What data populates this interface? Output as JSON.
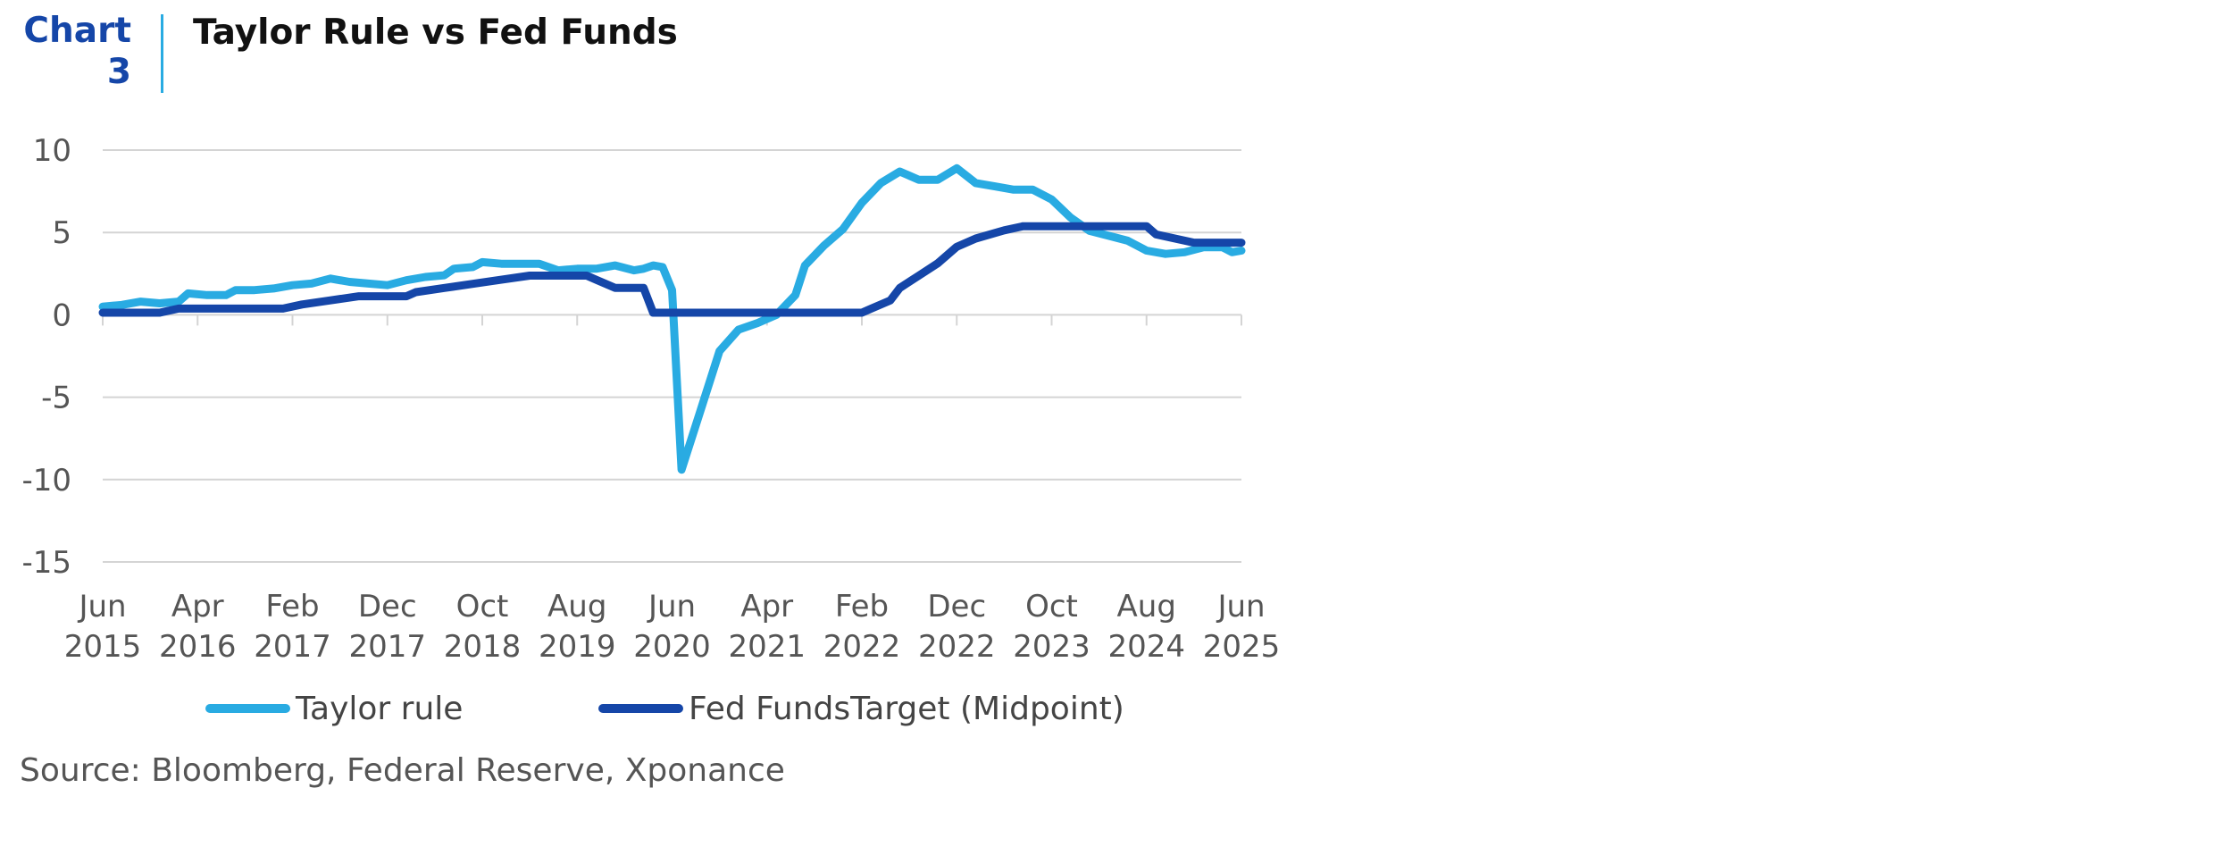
{
  "header": {
    "chart_label": "Chart 3",
    "title": "Taylor Rule vs Fed Funds"
  },
  "source": "Source: Bloomberg, Federal Reserve, Xponance",
  "colors": {
    "taylor": "#29abe2",
    "fed_funds": "#1546a8",
    "grid": "#d4d4d4",
    "axis_text": "#555555"
  },
  "chart_data": {
    "type": "line",
    "title": "Taylor Rule vs Fed Funds",
    "xlabel": "",
    "ylabel": "",
    "ylim": [
      -15,
      10
    ],
    "y_ticks": [
      10,
      5,
      0,
      -5,
      -10,
      -15
    ],
    "x_range": [
      "2015-06",
      "2025-06"
    ],
    "x_ticks": [
      {
        "date": "2015-06",
        "line1": "Jun",
        "line2": "2015"
      },
      {
        "date": "2016-04",
        "line1": "Apr",
        "line2": "2016"
      },
      {
        "date": "2017-02",
        "line1": "Feb",
        "line2": "2017"
      },
      {
        "date": "2017-12",
        "line1": "Dec",
        "line2": "2017"
      },
      {
        "date": "2018-10",
        "line1": "Oct",
        "line2": "2018"
      },
      {
        "date": "2019-08",
        "line1": "Aug",
        "line2": "2019"
      },
      {
        "date": "2020-06",
        "line1": "Jun",
        "line2": "2020"
      },
      {
        "date": "2021-04",
        "line1": "Apr",
        "line2": "2021"
      },
      {
        "date": "2022-02",
        "line1": "Feb",
        "line2": "2022"
      },
      {
        "date": "2022-12",
        "line1": "Dec",
        "line2": "2022"
      },
      {
        "date": "2023-10",
        "line1": "Oct",
        "line2": "2023"
      },
      {
        "date": "2024-08",
        "line1": "Aug",
        "line2": "2024"
      },
      {
        "date": "2025-06",
        "line1": "Jun",
        "line2": "2025"
      }
    ],
    "grid": true,
    "legend_position": "bottom",
    "series": [
      {
        "name": "Taylor rule",
        "color": "#29abe2",
        "points": [
          [
            "2015-06",
            0.5
          ],
          [
            "2015-08",
            0.6
          ],
          [
            "2015-10",
            0.8
          ],
          [
            "2015-12",
            0.7
          ],
          [
            "2016-02",
            0.8
          ],
          [
            "2016-03",
            1.3
          ],
          [
            "2016-05",
            1.2
          ],
          [
            "2016-07",
            1.2
          ],
          [
            "2016-08",
            1.5
          ],
          [
            "2016-10",
            1.5
          ],
          [
            "2016-12",
            1.6
          ],
          [
            "2017-02",
            1.8
          ],
          [
            "2017-04",
            1.9
          ],
          [
            "2017-06",
            2.2
          ],
          [
            "2017-08",
            2.0
          ],
          [
            "2017-10",
            1.9
          ],
          [
            "2017-12",
            1.8
          ],
          [
            "2018-02",
            2.1
          ],
          [
            "2018-04",
            2.3
          ],
          [
            "2018-06",
            2.4
          ],
          [
            "2018-07",
            2.8
          ],
          [
            "2018-09",
            2.9
          ],
          [
            "2018-10",
            3.2
          ],
          [
            "2018-12",
            3.1
          ],
          [
            "2019-02",
            3.1
          ],
          [
            "2019-04",
            3.1
          ],
          [
            "2019-06",
            2.7
          ],
          [
            "2019-08",
            2.8
          ],
          [
            "2019-10",
            2.8
          ],
          [
            "2019-12",
            3.0
          ],
          [
            "2020-02",
            2.7
          ],
          [
            "2020-03",
            2.8
          ],
          [
            "2020-04",
            3.0
          ],
          [
            "2020-05",
            2.9
          ],
          [
            "2020-06",
            1.5
          ],
          [
            "2020-07",
            -9.4
          ],
          [
            "2020-09",
            -5.8
          ],
          [
            "2020-11",
            -2.2
          ],
          [
            "2021-01",
            -0.9
          ],
          [
            "2021-03",
            -0.5
          ],
          [
            "2021-05",
            0.0
          ],
          [
            "2021-07",
            1.2
          ],
          [
            "2021-08",
            3.0
          ],
          [
            "2021-10",
            4.2
          ],
          [
            "2021-12",
            5.2
          ],
          [
            "2022-02",
            6.8
          ],
          [
            "2022-04",
            8.0
          ],
          [
            "2022-06",
            8.7
          ],
          [
            "2022-08",
            8.2
          ],
          [
            "2022-10",
            8.2
          ],
          [
            "2022-12",
            8.9
          ],
          [
            "2023-02",
            8.0
          ],
          [
            "2023-04",
            7.8
          ],
          [
            "2023-06",
            7.6
          ],
          [
            "2023-08",
            7.6
          ],
          [
            "2023-10",
            7.0
          ],
          [
            "2023-12",
            5.9
          ],
          [
            "2024-02",
            5.1
          ],
          [
            "2024-04",
            4.8
          ],
          [
            "2024-06",
            4.5
          ],
          [
            "2024-08",
            3.9
          ],
          [
            "2024-10",
            3.7
          ],
          [
            "2024-12",
            3.8
          ],
          [
            "2025-02",
            4.1
          ],
          [
            "2025-04",
            4.1
          ],
          [
            "2025-05",
            3.8
          ],
          [
            "2025-06",
            3.9
          ]
        ]
      },
      {
        "name": "Fed FundsTarget (Midpoint)",
        "color": "#1546a8",
        "points": [
          [
            "2015-06",
            0.13
          ],
          [
            "2015-12",
            0.13
          ],
          [
            "2016-02",
            0.38
          ],
          [
            "2017-01",
            0.38
          ],
          [
            "2017-03",
            0.63
          ],
          [
            "2017-06",
            0.88
          ],
          [
            "2017-09",
            1.13
          ],
          [
            "2018-02",
            1.13
          ],
          [
            "2018-03",
            1.38
          ],
          [
            "2018-06",
            1.63
          ],
          [
            "2018-09",
            1.88
          ],
          [
            "2018-12",
            2.13
          ],
          [
            "2019-03",
            2.38
          ],
          [
            "2019-09",
            2.38
          ],
          [
            "2019-10",
            2.13
          ],
          [
            "2019-12",
            1.63
          ],
          [
            "2020-03",
            1.63
          ],
          [
            "2020-04",
            0.13
          ],
          [
            "2022-02",
            0.13
          ],
          [
            "2022-03",
            0.38
          ],
          [
            "2022-05",
            0.88
          ],
          [
            "2022-06",
            1.63
          ],
          [
            "2022-08",
            2.38
          ],
          [
            "2022-10",
            3.13
          ],
          [
            "2022-12",
            4.13
          ],
          [
            "2023-02",
            4.63
          ],
          [
            "2023-05",
            5.13
          ],
          [
            "2023-07",
            5.38
          ],
          [
            "2024-08",
            5.38
          ],
          [
            "2024-09",
            4.88
          ],
          [
            "2024-11",
            4.63
          ],
          [
            "2025-01",
            4.38
          ],
          [
            "2025-06",
            4.38
          ]
        ]
      }
    ]
  }
}
